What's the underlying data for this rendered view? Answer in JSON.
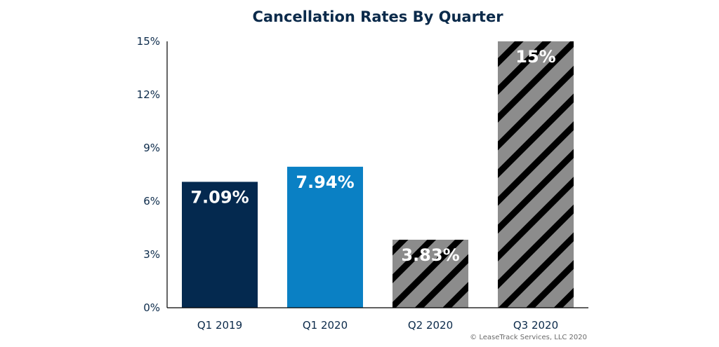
{
  "chart_data": {
    "type": "bar",
    "title": "Cancellation Rates By Quarter",
    "categories": [
      "Q1 2019",
      "Q1 2020",
      "Q2 2020",
      "Q3 2020"
    ],
    "values": [
      7.09,
      7.94,
      3.83,
      15
    ],
    "data_labels": [
      "7.09%",
      "7.94%",
      "3.83%",
      "15%"
    ],
    "bar_styles": [
      "solid",
      "solid",
      "hatched",
      "hatched"
    ],
    "bar_colors": [
      "#04294f",
      "#0a80c4",
      "#8c8c8c",
      "#8c8c8c"
    ],
    "hatch_color": "#000000",
    "ylim": [
      0,
      15
    ],
    "yticks": [
      0,
      3,
      6,
      9,
      12,
      15
    ],
    "ytick_labels": [
      "0%",
      "3%",
      "6%",
      "9%",
      "12%",
      "15%"
    ],
    "xlabel": "",
    "ylabel": "",
    "grid": false,
    "credit": "© LeaseTrack Services, LLC 2020"
  }
}
